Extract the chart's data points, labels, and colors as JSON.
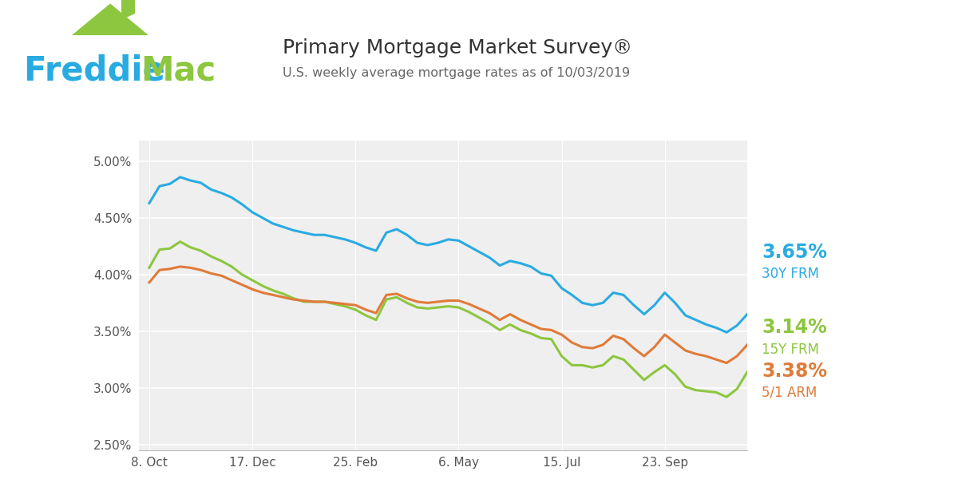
{
  "title": "Primary Mortgage Market Survey®",
  "subtitle": "U.S. weekly average mortgage rates as of 10/03/2019",
  "line_30y_color": "#29abe2",
  "line_15y_color": "#8dc63f",
  "line_51arm_color": "#e07b39",
  "label_30y": "3.65%",
  "label_15y": "3.14%",
  "label_51arm": "3.38%",
  "label_30y_name": "30Y FRM",
  "label_15y_name": "15Y FRM",
  "label_51arm_name": "5/1 ARM",
  "yticks": [
    2.5,
    3.0,
    3.5,
    4.0,
    4.5,
    5.0
  ],
  "ytick_labels": [
    "2.50%",
    "3.00%",
    "3.50%",
    "4.00%",
    "4.50%",
    "5.00%"
  ],
  "xtick_labels": [
    "8. Oct",
    "17. Dec",
    "25. Feb",
    "6. May",
    "15. Jul",
    "23. Sep"
  ],
  "xtick_positions": [
    0,
    10,
    20,
    30,
    40,
    50
  ],
  "xlim": [
    -1,
    58
  ],
  "ylim": [
    2.45,
    5.18
  ],
  "freddie_blue": "#29abe2",
  "freddie_green": "#8dc63f",
  "plot_bg_color": "#efefef",
  "data_30y": [
    4.63,
    4.78,
    4.8,
    4.86,
    4.83,
    4.81,
    4.75,
    4.72,
    4.68,
    4.62,
    4.55,
    4.5,
    4.45,
    4.42,
    4.39,
    4.37,
    4.35,
    4.35,
    4.33,
    4.31,
    4.28,
    4.24,
    4.21,
    4.37,
    4.4,
    4.35,
    4.28,
    4.26,
    4.28,
    4.31,
    4.3,
    4.25,
    4.2,
    4.15,
    4.08,
    4.12,
    4.1,
    4.07,
    4.01,
    3.99,
    3.88,
    3.82,
    3.75,
    3.73,
    3.75,
    3.84,
    3.82,
    3.73,
    3.65,
    3.73,
    3.84,
    3.75,
    3.64,
    3.6,
    3.56,
    3.53,
    3.49,
    3.55,
    3.65
  ],
  "data_15y": [
    4.06,
    4.22,
    4.23,
    4.29,
    4.24,
    4.21,
    4.16,
    4.12,
    4.07,
    4.0,
    3.95,
    3.9,
    3.86,
    3.83,
    3.79,
    3.76,
    3.76,
    3.76,
    3.74,
    3.72,
    3.69,
    3.64,
    3.6,
    3.78,
    3.8,
    3.75,
    3.71,
    3.7,
    3.71,
    3.72,
    3.71,
    3.67,
    3.62,
    3.57,
    3.51,
    3.56,
    3.51,
    3.48,
    3.44,
    3.43,
    3.28,
    3.2,
    3.2,
    3.18,
    3.2,
    3.28,
    3.25,
    3.16,
    3.07,
    3.14,
    3.2,
    3.12,
    3.01,
    2.98,
    2.97,
    2.96,
    2.92,
    2.99,
    3.14
  ],
  "data_51arm": [
    3.93,
    4.04,
    4.05,
    4.07,
    4.06,
    4.04,
    4.01,
    3.99,
    3.95,
    3.91,
    3.87,
    3.84,
    3.82,
    3.8,
    3.78,
    3.77,
    3.76,
    3.76,
    3.75,
    3.74,
    3.73,
    3.69,
    3.66,
    3.82,
    3.83,
    3.79,
    3.76,
    3.75,
    3.76,
    3.77,
    3.77,
    3.74,
    3.7,
    3.66,
    3.6,
    3.65,
    3.6,
    3.56,
    3.52,
    3.51,
    3.47,
    3.4,
    3.36,
    3.35,
    3.38,
    3.46,
    3.43,
    3.35,
    3.28,
    3.36,
    3.47,
    3.4,
    3.33,
    3.3,
    3.28,
    3.25,
    3.22,
    3.28,
    3.38
  ]
}
